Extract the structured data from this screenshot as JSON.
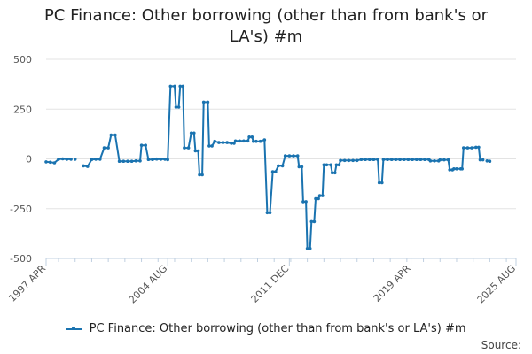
{
  "chart_data": {
    "type": "line",
    "title_lines": [
      "PC Finance: Other borrowing (other than from bank's or",
      "LA's) #m"
    ],
    "y_ticks": [
      500,
      250,
      0,
      -250,
      -500
    ],
    "ylim": [
      -500,
      500
    ],
    "x_ticks": [
      "1997 APR",
      "2004 AUG",
      "2011 DEC",
      "2019 APR",
      "2025 AUG"
    ],
    "xlim": [
      "1997-04",
      "2025-08"
    ],
    "grid": true,
    "legend_position": "bottom",
    "series": [
      {
        "name": "PC Finance: Other borrowing (other than from bank's or LA's) #m",
        "color": "#1a73b0",
        "segments": [
          [
            [
              "1997-04",
              -15
            ],
            [
              "1997-07",
              -17
            ],
            [
              "1997-10",
              -20
            ],
            [
              "1998-01",
              -2
            ],
            [
              "1998-04",
              0
            ],
            [
              "1998-07",
              -2
            ],
            [
              "1998-10",
              -2
            ]
          ],
          [
            [
              "1999-01",
              -2
            ]
          ],
          [
            [
              "1999-07",
              -35
            ],
            [
              "1999-10",
              -38
            ],
            [
              "2000-01",
              -3
            ],
            [
              "2000-04",
              -2
            ],
            [
              "2000-07",
              -2
            ],
            [
              "2000-10",
              55
            ],
            [
              "2001-01",
              55
            ],
            [
              "2001-03",
              120
            ],
            [
              "2001-06",
              120
            ],
            [
              "2001-09",
              -12
            ],
            [
              "2001-12",
              -12
            ],
            [
              "2002-03",
              -12
            ],
            [
              "2002-06",
              -12
            ],
            [
              "2002-09",
              -10
            ],
            [
              "2002-12",
              -10
            ],
            [
              "2003-01",
              68
            ],
            [
              "2003-04",
              68
            ],
            [
              "2003-06",
              -3
            ],
            [
              "2003-09",
              -3
            ],
            [
              "2003-12",
              -1
            ],
            [
              "2004-03",
              -2
            ],
            [
              "2004-06",
              -2
            ],
            [
              "2004-08",
              -4
            ],
            [
              "2004-10",
              365
            ],
            [
              "2005-01",
              365
            ],
            [
              "2005-02",
              260
            ],
            [
              "2005-04",
              260
            ],
            [
              "2005-05",
              365
            ],
            [
              "2005-07",
              365
            ],
            [
              "2005-08",
              55
            ],
            [
              "2005-11",
              55
            ],
            [
              "2006-01",
              130
            ],
            [
              "2006-03",
              130
            ],
            [
              "2006-04",
              40
            ],
            [
              "2006-06",
              40
            ],
            [
              "2006-07",
              -80
            ],
            [
              "2006-09",
              -80
            ],
            [
              "2006-10",
              285
            ],
            [
              "2007-01",
              285
            ],
            [
              "2007-02",
              65
            ],
            [
              "2007-04",
              65
            ],
            [
              "2007-06",
              88
            ],
            [
              "2007-09",
              82
            ],
            [
              "2007-12",
              82
            ],
            [
              "2008-03",
              82
            ],
            [
              "2008-06",
              78
            ],
            [
              "2008-08",
              78
            ],
            [
              "2008-09",
              90
            ],
            [
              "2008-12",
              90
            ],
            [
              "2009-03",
              90
            ],
            [
              "2009-06",
              90
            ],
            [
              "2009-07",
              110
            ],
            [
              "2009-09",
              110
            ],
            [
              "2009-10",
              88
            ],
            [
              "2009-12",
              88
            ],
            [
              "2010-03",
              88
            ],
            [
              "2010-06",
              95
            ],
            [
              "2010-08",
              -270
            ],
            [
              "2010-10",
              -270
            ],
            [
              "2010-12",
              -65
            ],
            [
              "2011-02",
              -65
            ],
            [
              "2011-04",
              -35
            ],
            [
              "2011-07",
              -35
            ],
            [
              "2011-09",
              15
            ],
            [
              "2011-12",
              15
            ],
            [
              "2012-03",
              15
            ],
            [
              "2012-06",
              15
            ],
            [
              "2012-07",
              -40
            ],
            [
              "2012-09",
              -40
            ],
            [
              "2012-10",
              -215
            ],
            [
              "2012-12",
              -215
            ],
            [
              "2013-01",
              -450
            ],
            [
              "2013-03",
              -450
            ],
            [
              "2013-04",
              -315
            ],
            [
              "2013-06",
              -315
            ],
            [
              "2013-07",
              -200
            ],
            [
              "2013-09",
              -200
            ],
            [
              "2013-10",
              -185
            ],
            [
              "2013-12",
              -185
            ],
            [
              "2014-01",
              -30
            ],
            [
              "2014-03",
              -30
            ],
            [
              "2014-06",
              -30
            ],
            [
              "2014-07",
              -70
            ],
            [
              "2014-09",
              -70
            ],
            [
              "2014-10",
              -30
            ],
            [
              "2014-12",
              -30
            ],
            [
              "2015-01",
              -8
            ],
            [
              "2015-04",
              -8
            ],
            [
              "2015-07",
              -8
            ],
            [
              "2015-10",
              -8
            ],
            [
              "2016-01",
              -8
            ],
            [
              "2016-04",
              -3
            ],
            [
              "2016-07",
              -3
            ],
            [
              "2016-10",
              -3
            ],
            [
              "2017-01",
              -3
            ],
            [
              "2017-04",
              -3
            ],
            [
              "2017-05",
              -120
            ],
            [
              "2017-07",
              -120
            ],
            [
              "2017-08",
              -3
            ],
            [
              "2017-11",
              -3
            ],
            [
              "2018-02",
              -3
            ],
            [
              "2018-05",
              -3
            ],
            [
              "2018-08",
              -3
            ],
            [
              "2018-11",
              -3
            ],
            [
              "2019-02",
              -3
            ],
            [
              "2019-05",
              -3
            ],
            [
              "2019-08",
              -3
            ],
            [
              "2019-11",
              -3
            ],
            [
              "2020-02",
              -3
            ],
            [
              "2020-05",
              -3
            ],
            [
              "2020-06",
              -10
            ],
            [
              "2020-09",
              -10
            ],
            [
              "2020-12",
              -10
            ],
            [
              "2021-01",
              -5
            ],
            [
              "2021-04",
              -5
            ],
            [
              "2021-07",
              -5
            ],
            [
              "2021-08",
              -55
            ],
            [
              "2021-10",
              -55
            ],
            [
              "2021-11",
              -50
            ],
            [
              "2022-01",
              -50
            ],
            [
              "2022-04",
              -50
            ],
            [
              "2022-05",
              -50
            ],
            [
              "2022-06",
              55
            ],
            [
              "2022-09",
              55
            ],
            [
              "2022-12",
              55
            ],
            [
              "2023-03",
              58
            ],
            [
              "2023-05",
              58
            ],
            [
              "2023-06",
              -5
            ],
            [
              "2023-08",
              -5
            ]
          ],
          [
            [
              "2023-11",
              -10
            ],
            [
              "2024-01",
              -12
            ]
          ]
        ]
      }
    ],
    "source_label": "Source:"
  }
}
